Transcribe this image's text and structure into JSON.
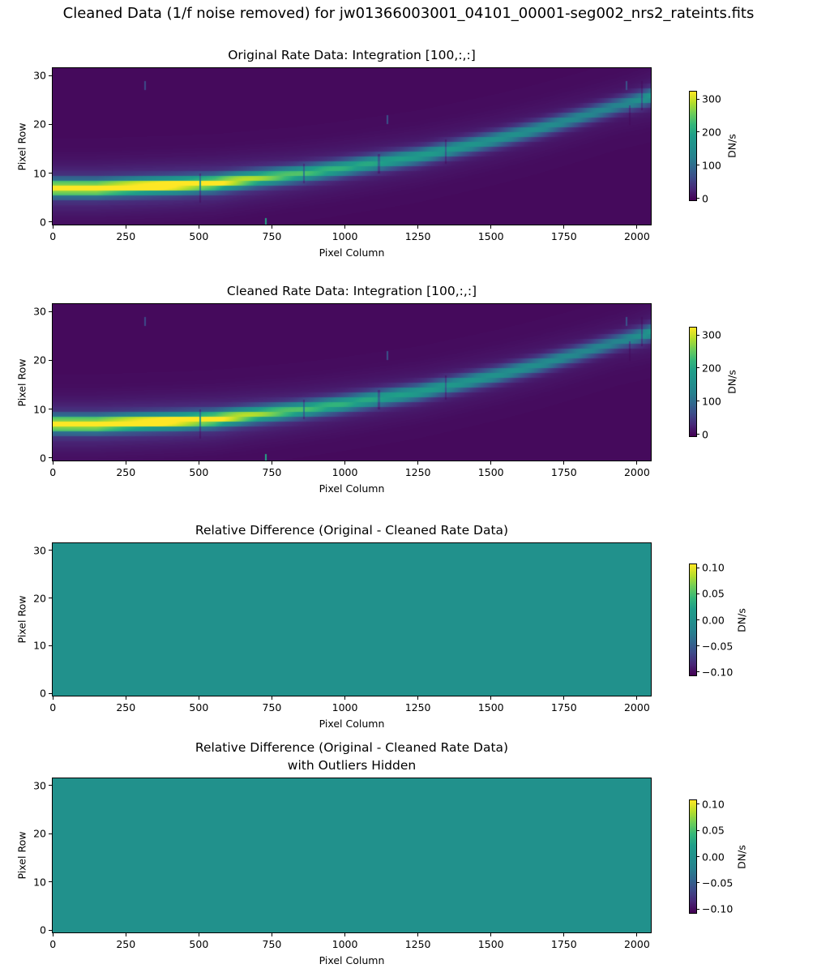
{
  "figure": {
    "suptitle": "Cleaned Data (1/f noise removed) for jw01366003001_04101_00001-seg002_nrs2_rateints.fits",
    "background": "#ffffff",
    "text_color": "#000000"
  },
  "colors": {
    "viridis_stops": [
      "#440154",
      "#482878",
      "#3e4a89",
      "#31688e",
      "#26828e",
      "#21918c",
      "#1f9e89",
      "#35b779",
      "#6dcd59",
      "#b5de2b",
      "#fde725"
    ],
    "heatmap_background": "#440154",
    "zero_difference_teal": "#21918c"
  },
  "chart_data": [
    {
      "type": "heatmap",
      "title": "Original Rate Data: Integration [100,:,:]",
      "xlabel": "Pixel Column",
      "ylabel": "Pixel Row",
      "x_range": [
        -0.5,
        2047.5
      ],
      "y_range": [
        -0.5,
        31.5
      ],
      "x_ticks": [
        {
          "v": 0,
          "label": "0"
        },
        {
          "v": 250,
          "label": "250"
        },
        {
          "v": 500,
          "label": "500"
        },
        {
          "v": 750,
          "label": "750"
        },
        {
          "v": 1000,
          "label": "1000"
        },
        {
          "v": 1250,
          "label": "1250"
        },
        {
          "v": 1500,
          "label": "1500"
        },
        {
          "v": 1750,
          "label": "1750"
        },
        {
          "v": 2000,
          "label": "2000"
        }
      ],
      "y_ticks": [
        {
          "v": 0,
          "label": "0"
        },
        {
          "v": 10,
          "label": "10"
        },
        {
          "v": 20,
          "label": "20"
        },
        {
          "v": 30,
          "label": "30"
        }
      ],
      "colorbar": {
        "label": "DN/s",
        "vmin": -5,
        "vmax": 322,
        "ticks": [
          {
            "v": 0,
            "label": "0"
          },
          {
            "v": 100,
            "label": "100"
          },
          {
            "v": 200,
            "label": "200"
          },
          {
            "v": 300,
            "label": "300"
          }
        ]
      },
      "data": {
        "kind": "spectral_trace",
        "background_value": 3,
        "trace": {
          "cols": [
            0,
            150,
            280,
            420,
            555,
            690,
            830,
            970,
            1110,
            1250,
            1390,
            1525,
            1665,
            1800,
            1940,
            2010,
            2047
          ],
          "rows": [
            7.0,
            7.0,
            7.3,
            7.6,
            8.0,
            8.9,
            9.8,
            10.9,
            12.2,
            13.5,
            15.3,
            17.1,
            19.2,
            21.5,
            24.0,
            25.1,
            25.8
          ],
          "amps": [
            335,
            335,
            330,
            320,
            300,
            255,
            215,
            195,
            178,
            165,
            152,
            142,
            133,
            122,
            115,
            140,
            155
          ],
          "core_sigma_rows": 1.05,
          "halo_sigma_rows": 3.3,
          "halo_fraction": 0.12
        },
        "artifact_columns": [
          {
            "col": 505,
            "row_min": 4,
            "row_max": 10
          },
          {
            "col": 860,
            "row_min": 8,
            "row_max": 12
          },
          {
            "col": 1117,
            "row_min": 10,
            "row_max": 14
          },
          {
            "col": 1345,
            "row_min": 12,
            "row_max": 17
          },
          {
            "col": 1977,
            "row_min": 20,
            "row_max": 24
          },
          {
            "col": 2018,
            "row_min": 23,
            "row_max": 29
          }
        ],
        "bright_spots": [
          {
            "col": 730,
            "row": 0,
            "value": 200
          },
          {
            "col": 317,
            "row": 28,
            "value": 60
          },
          {
            "col": 1146,
            "row": 21,
            "value": 70
          },
          {
            "col": 1965,
            "row": 28,
            "value": 70
          }
        ]
      }
    },
    {
      "type": "heatmap",
      "title": "Cleaned Rate Data: Integration [100,:,:]",
      "xlabel": "Pixel Column",
      "ylabel": "Pixel Row",
      "x_range": [
        -0.5,
        2047.5
      ],
      "y_range": [
        -0.5,
        31.5
      ],
      "x_ticks": [
        {
          "v": 0,
          "label": "0"
        },
        {
          "v": 250,
          "label": "250"
        },
        {
          "v": 500,
          "label": "500"
        },
        {
          "v": 750,
          "label": "750"
        },
        {
          "v": 1000,
          "label": "1000"
        },
        {
          "v": 1250,
          "label": "1250"
        },
        {
          "v": 1500,
          "label": "1500"
        },
        {
          "v": 1750,
          "label": "1750"
        },
        {
          "v": 2000,
          "label": "2000"
        }
      ],
      "y_ticks": [
        {
          "v": 0,
          "label": "0"
        },
        {
          "v": 10,
          "label": "10"
        },
        {
          "v": 20,
          "label": "20"
        },
        {
          "v": 30,
          "label": "30"
        }
      ],
      "colorbar": {
        "label": "DN/s",
        "vmin": -5,
        "vmax": 322,
        "ticks": [
          {
            "v": 0,
            "label": "0"
          },
          {
            "v": 100,
            "label": "100"
          },
          {
            "v": 200,
            "label": "200"
          },
          {
            "v": 300,
            "label": "300"
          }
        ]
      },
      "data": {
        "kind": "spectral_trace",
        "background_value": 3,
        "trace": {
          "cols": [
            0,
            150,
            280,
            420,
            555,
            690,
            830,
            970,
            1110,
            1250,
            1390,
            1525,
            1665,
            1800,
            1940,
            2010,
            2047
          ],
          "rows": [
            7.0,
            7.0,
            7.3,
            7.6,
            8.0,
            8.9,
            9.8,
            10.9,
            12.2,
            13.5,
            15.3,
            17.1,
            19.2,
            21.5,
            24.0,
            25.1,
            25.8
          ],
          "amps": [
            335,
            335,
            330,
            320,
            300,
            255,
            215,
            195,
            178,
            165,
            152,
            142,
            133,
            122,
            115,
            140,
            155
          ],
          "core_sigma_rows": 1.05,
          "halo_sigma_rows": 3.3,
          "halo_fraction": 0.12
        },
        "artifact_columns": [
          {
            "col": 505,
            "row_min": 4,
            "row_max": 10
          },
          {
            "col": 860,
            "row_min": 8,
            "row_max": 12
          },
          {
            "col": 1117,
            "row_min": 10,
            "row_max": 14
          },
          {
            "col": 1345,
            "row_min": 12,
            "row_max": 17
          },
          {
            "col": 1977,
            "row_min": 20,
            "row_max": 24
          },
          {
            "col": 2018,
            "row_min": 23,
            "row_max": 29
          }
        ],
        "bright_spots": [
          {
            "col": 730,
            "row": 0,
            "value": 200
          },
          {
            "col": 317,
            "row": 28,
            "value": 60
          },
          {
            "col": 1146,
            "row": 21,
            "value": 70
          },
          {
            "col": 1965,
            "row": 28,
            "value": 70
          }
        ]
      }
    },
    {
      "type": "heatmap",
      "title": "Relative Difference (Original - Cleaned Rate Data)",
      "xlabel": "Pixel Column",
      "ylabel": "Pixel Row",
      "x_range": [
        -0.5,
        2047.5
      ],
      "y_range": [
        -0.5,
        31.5
      ],
      "x_ticks": [
        {
          "v": 0,
          "label": "0"
        },
        {
          "v": 250,
          "label": "250"
        },
        {
          "v": 500,
          "label": "500"
        },
        {
          "v": 750,
          "label": "750"
        },
        {
          "v": 1000,
          "label": "1000"
        },
        {
          "v": 1250,
          "label": "1250"
        },
        {
          "v": 1500,
          "label": "1500"
        },
        {
          "v": 1750,
          "label": "1750"
        },
        {
          "v": 2000,
          "label": "2000"
        }
      ],
      "y_ticks": [
        {
          "v": 0,
          "label": "0"
        },
        {
          "v": 10,
          "label": "10"
        },
        {
          "v": 20,
          "label": "20"
        },
        {
          "v": 30,
          "label": "30"
        }
      ],
      "colorbar": {
        "label": "DN/s",
        "vmin": -0.107,
        "vmax": 0.107,
        "ticks": [
          {
            "v": 0.1,
            "label": "0.10"
          },
          {
            "v": 0.05,
            "label": "0.05"
          },
          {
            "v": 0.0,
            "label": "0.00"
          },
          {
            "v": -0.05,
            "label": "−0.05"
          },
          {
            "v": -0.1,
            "label": "−0.10"
          }
        ]
      },
      "data": {
        "kind": "uniform",
        "value": 0.0
      }
    },
    {
      "type": "heatmap",
      "title": "Relative Difference (Original - Cleaned Rate Data)\nwith Outliers Hidden",
      "xlabel": "Pixel Column",
      "ylabel": "Pixel Row",
      "x_range": [
        -0.5,
        2047.5
      ],
      "y_range": [
        -0.5,
        31.5
      ],
      "x_ticks": [
        {
          "v": 0,
          "label": "0"
        },
        {
          "v": 250,
          "label": "250"
        },
        {
          "v": 500,
          "label": "500"
        },
        {
          "v": 750,
          "label": "750"
        },
        {
          "v": 1000,
          "label": "1000"
        },
        {
          "v": 1250,
          "label": "1250"
        },
        {
          "v": 1500,
          "label": "1500"
        },
        {
          "v": 1750,
          "label": "1750"
        },
        {
          "v": 2000,
          "label": "2000"
        }
      ],
      "y_ticks": [
        {
          "v": 0,
          "label": "0"
        },
        {
          "v": 10,
          "label": "10"
        },
        {
          "v": 20,
          "label": "20"
        },
        {
          "v": 30,
          "label": "30"
        }
      ],
      "colorbar": {
        "label": "DN/s",
        "vmin": -0.107,
        "vmax": 0.107,
        "ticks": [
          {
            "v": 0.1,
            "label": "0.10"
          },
          {
            "v": 0.05,
            "label": "0.05"
          },
          {
            "v": 0.0,
            "label": "0.00"
          },
          {
            "v": -0.05,
            "label": "−0.05"
          },
          {
            "v": -0.1,
            "label": "−0.10"
          }
        ]
      },
      "data": {
        "kind": "uniform",
        "value": 0.0
      }
    }
  ]
}
